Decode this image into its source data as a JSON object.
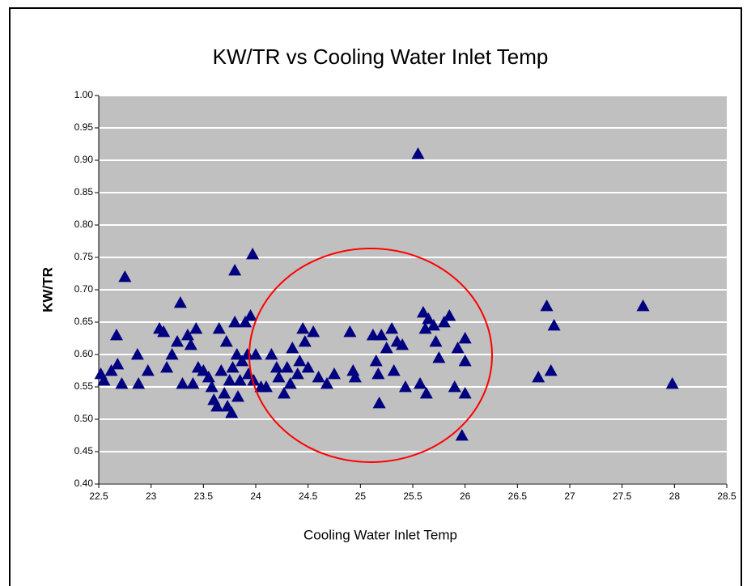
{
  "chart_data": {
    "type": "scatter",
    "title": "KW/TR vs Cooling Water Inlet Temp",
    "xlabel": "Cooling Water Inlet Temp",
    "ylabel": "KW/TR",
    "color": "#000080",
    "grid": true,
    "xlim": [
      22.5,
      28.5
    ],
    "ylim": [
      0.4,
      1.0
    ],
    "xticks": [
      22.5,
      23,
      23.5,
      24,
      24.5,
      25,
      25.5,
      26,
      26.5,
      27,
      27.5,
      28,
      28.5
    ],
    "yticks": [
      {
        "value": 0.4,
        "label": "0.40"
      },
      {
        "value": 0.45,
        "label": "0.45"
      },
      {
        "value": 0.5,
        "label": "0.50"
      },
      {
        "value": 0.55,
        "label": "0.55"
      },
      {
        "value": 0.6,
        "label": "0.60"
      },
      {
        "value": 0.65,
        "label": "0.65"
      },
      {
        "value": 0.7,
        "label": "0.70"
      },
      {
        "value": 0.75,
        "label": "0.75"
      },
      {
        "value": 0.8,
        "label": "0.80"
      },
      {
        "value": 0.85,
        "label": "0.85"
      },
      {
        "value": 0.9,
        "label": "0.90"
      },
      {
        "value": 0.95,
        "label": "0.95"
      },
      {
        "value": 1.0,
        "label": "1.00"
      }
    ],
    "x": [
      22.52,
      22.55,
      22.62,
      22.67,
      22.68,
      22.72,
      22.75,
      22.87,
      22.88,
      22.97,
      23.08,
      23.12,
      23.15,
      23.2,
      23.25,
      23.28,
      23.3,
      23.35,
      23.38,
      23.4,
      23.43,
      23.45,
      23.5,
      23.55,
      23.58,
      23.6,
      23.63,
      23.65,
      23.67,
      23.7,
      23.72,
      23.73,
      23.75,
      23.77,
      23.78,
      23.8,
      23.8,
      23.82,
      23.83,
      23.85,
      23.87,
      23.9,
      23.92,
      23.93,
      23.95,
      23.97,
      23.98,
      24.0,
      24.05,
      24.1,
      24.15,
      24.2,
      24.22,
      24.27,
      24.3,
      24.33,
      24.35,
      24.4,
      24.42,
      24.45,
      24.47,
      24.5,
      24.55,
      24.6,
      24.68,
      24.75,
      24.9,
      24.93,
      24.95,
      25.12,
      25.15,
      25.17,
      25.18,
      25.2,
      25.25,
      25.3,
      25.32,
      25.35,
      25.4,
      25.43,
      25.55,
      25.57,
      25.6,
      25.62,
      25.63,
      25.65,
      25.7,
      25.72,
      25.75,
      25.8,
      25.85,
      25.9,
      25.93,
      26.0,
      26.0,
      26.0,
      25.97,
      26.7,
      26.78,
      26.82,
      26.85,
      27.7,
      27.98
    ],
    "values": [
      0.57,
      0.56,
      0.575,
      0.63,
      0.585,
      0.555,
      0.72,
      0.6,
      0.555,
      0.575,
      0.64,
      0.635,
      0.58,
      0.6,
      0.62,
      0.68,
      0.555,
      0.63,
      0.615,
      0.555,
      0.64,
      0.58,
      0.575,
      0.565,
      0.55,
      0.53,
      0.52,
      0.64,
      0.575,
      0.54,
      0.62,
      0.52,
      0.56,
      0.51,
      0.58,
      0.73,
      0.65,
      0.6,
      0.535,
      0.56,
      0.59,
      0.65,
      0.6,
      0.57,
      0.66,
      0.755,
      0.56,
      0.6,
      0.55,
      0.55,
      0.6,
      0.58,
      0.565,
      0.54,
      0.58,
      0.555,
      0.61,
      0.57,
      0.59,
      0.64,
      0.62,
      0.58,
      0.635,
      0.565,
      0.555,
      0.57,
      0.635,
      0.575,
      0.565,
      0.63,
      0.59,
      0.57,
      0.525,
      0.63,
      0.61,
      0.64,
      0.575,
      0.62,
      0.615,
      0.55,
      0.91,
      0.555,
      0.665,
      0.64,
      0.54,
      0.655,
      0.645,
      0.62,
      0.595,
      0.65,
      0.66,
      0.55,
      0.61,
      0.625,
      0.59,
      0.54,
      0.475,
      0.565,
      0.675,
      0.575,
      0.645,
      0.675,
      0.555
    ]
  }
}
